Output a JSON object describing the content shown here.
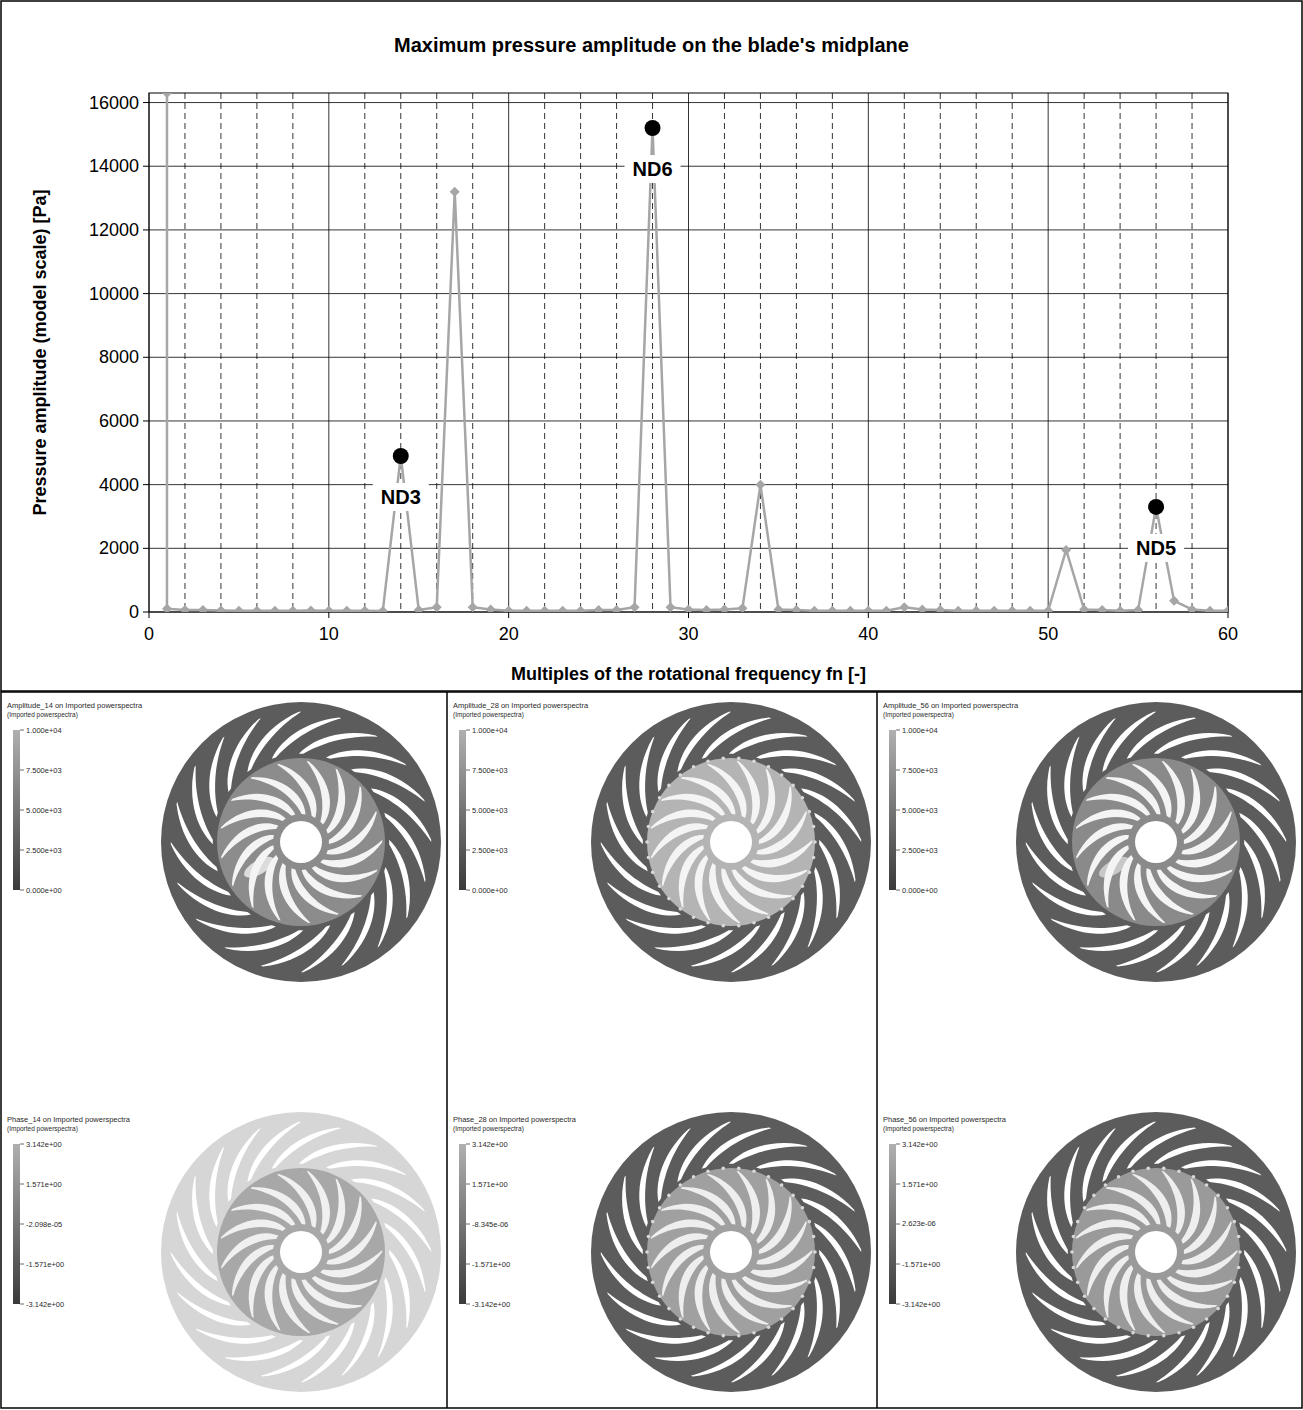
{
  "chart_data": {
    "type": "line",
    "title": "Maximum pressure amplitude on the blade's midplane",
    "x_label": "Multiples of the rotational frequency fn [-]",
    "y_label": "Pressure amplitude (model scale) [Pa]",
    "x": [
      1,
      1,
      2,
      3,
      4,
      5,
      6,
      7,
      8,
      9,
      10,
      11,
      12,
      13,
      14,
      15,
      16,
      17,
      18,
      19,
      20,
      21,
      22,
      23,
      24,
      25,
      26,
      27,
      28,
      29,
      30,
      31,
      32,
      33,
      34,
      35,
      36,
      37,
      38,
      39,
      40,
      41,
      42,
      43,
      44,
      45,
      46,
      47,
      48,
      49,
      50,
      51,
      52,
      53,
      54,
      55,
      56,
      57,
      58,
      59,
      60
    ],
    "values": [
      16300,
      100,
      60,
      60,
      50,
      40,
      40,
      40,
      40,
      50,
      40,
      40,
      40,
      30,
      4900,
      60,
      150,
      13200,
      150,
      80,
      40,
      40,
      40,
      40,
      40,
      60,
      60,
      150,
      15200,
      150,
      80,
      60,
      80,
      120,
      4000,
      80,
      60,
      40,
      40,
      40,
      40,
      40,
      150,
      80,
      60,
      40,
      40,
      40,
      40,
      40,
      40,
      1950,
      80,
      60,
      40,
      60,
      3300,
      350,
      80,
      40,
      40
    ],
    "color": "#a6a6a6",
    "marker": "diamond",
    "line_style": "solid",
    "xlim": [
      0,
      60
    ],
    "xticks": [
      0,
      10,
      20,
      30,
      40,
      50,
      60
    ],
    "ylim": [
      0,
      16300
    ],
    "yticks": [
      0,
      2000,
      4000,
      6000,
      8000,
      10000,
      12000,
      14000,
      16000
    ],
    "grid": true,
    "annotations": [
      {
        "text": "ND3",
        "x": 14,
        "y": 4900
      },
      {
        "text": "ND6",
        "x": 28,
        "y": 15200
      },
      {
        "text": "ND5",
        "x": 56,
        "y": 3300
      }
    ]
  },
  "contour_panels": [
    {
      "amplitude": {
        "title": "Amplitude_14 on Imported powerspectra",
        "subtitle": "(Imported powerspectra)",
        "range": [
          0,
          10000
        ],
        "ticks": [
          {
            "value": 10000,
            "label": "1.000e+04"
          },
          {
            "value": 7500,
            "label": "7.500e+03"
          },
          {
            "value": 5000,
            "label": "5.000e+03"
          },
          {
            "value": 2500,
            "label": "2.500e+03"
          },
          {
            "value": 0,
            "label": "0.000e+00"
          }
        ]
      },
      "phase": {
        "title": "Phase_14 on Imported powerspectra",
        "subtitle": "(Imported powerspectra)",
        "range": [
          -3.142,
          3.142
        ],
        "ticks": [
          {
            "value": 3.142,
            "label": "3.142e+00"
          },
          {
            "value": 1.571,
            "label": "1.571e+00"
          },
          {
            "value": -2.098e-05,
            "label": "-2.098e-05"
          },
          {
            "value": -1.571,
            "label": "-1.571e+00"
          },
          {
            "value": -3.142,
            "label": "-3.142e+00"
          }
        ]
      }
    },
    {
      "amplitude": {
        "title": "Amplitude_28 on Imported powerspectra",
        "subtitle": "(Imported powerspectra)",
        "range": [
          0,
          10000
        ],
        "ticks": [
          {
            "value": 10000,
            "label": "1.000e+04"
          },
          {
            "value": 7500,
            "label": "7.500e+03"
          },
          {
            "value": 5000,
            "label": "5.000e+03"
          },
          {
            "value": 2500,
            "label": "2.500e+03"
          },
          {
            "value": 0,
            "label": "0.000e+00"
          }
        ]
      },
      "phase": {
        "title": "Phase_28 on Imported powerspectra",
        "subtitle": "(Imported powerspectra)",
        "range": [
          -3.142,
          3.142
        ],
        "ticks": [
          {
            "value": 3.142,
            "label": "3.142e+00"
          },
          {
            "value": 1.571,
            "label": "1.571e+00"
          },
          {
            "value": -8.345e-06,
            "label": "-8.345e-06"
          },
          {
            "value": -1.571,
            "label": "-1.571e+00"
          },
          {
            "value": -3.142,
            "label": "-3.142e+00"
          }
        ]
      }
    },
    {
      "amplitude": {
        "title": "Amplitude_56 on Imported powerspectra",
        "subtitle": "(Imported powerspectra)",
        "range": [
          0,
          10000
        ],
        "ticks": [
          {
            "value": 10000,
            "label": "1.000e+04"
          },
          {
            "value": 7500,
            "label": "7.500e+03"
          },
          {
            "value": 5000,
            "label": "5.000e+03"
          },
          {
            "value": 2500,
            "label": "2.500e+03"
          },
          {
            "value": 0,
            "label": "0.000e+00"
          }
        ]
      },
      "phase": {
        "title": "Phase_56 on Imported powerspectra",
        "subtitle": "(Imported powerspectra)",
        "range": [
          -3.142,
          3.142
        ],
        "ticks": [
          {
            "value": 3.142,
            "label": "3.142e+00"
          },
          {
            "value": 1.571,
            "label": "1.571e+00"
          },
          {
            "value": 2.623e-06,
            "label": "2.623e-06"
          },
          {
            "value": -1.571,
            "label": "-1.571e+00"
          },
          {
            "value": -3.142,
            "label": "-3.142e+00"
          }
        ]
      }
    }
  ]
}
